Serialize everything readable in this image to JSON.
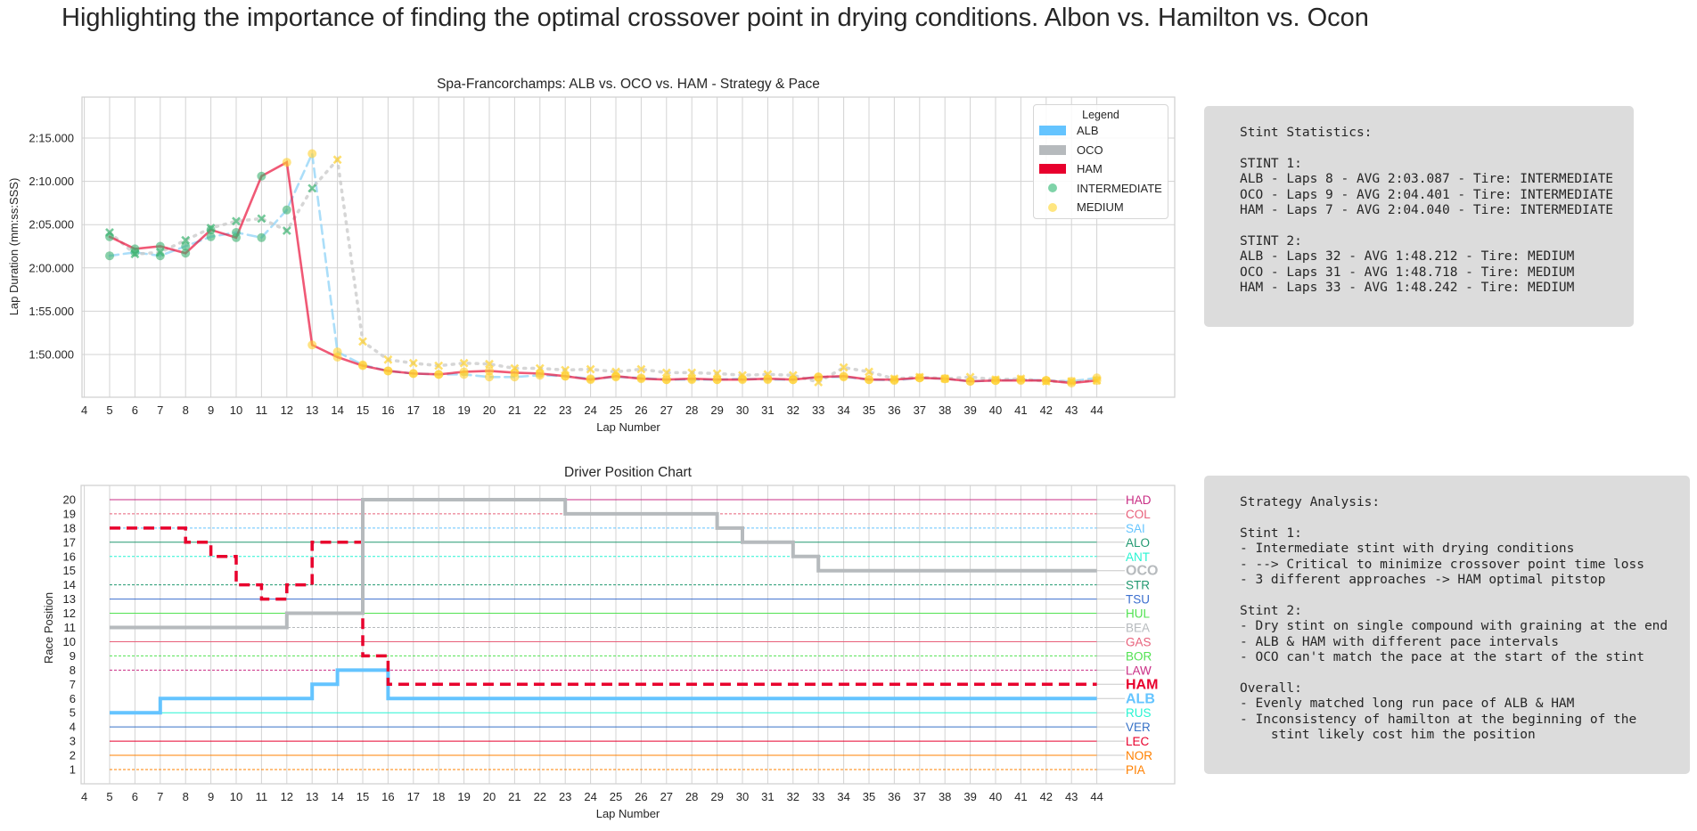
{
  "title": "Highlighting the importance of finding the optimal crossover point in drying conditions. Albon vs. Hamilton vs. Ocon",
  "chart_data": [
    {
      "type": "line",
      "title": "Spa-Francorchamps: ALB vs. OCO vs. HAM - Strategy & Pace",
      "xlabel": "Lap Number",
      "ylabel": "Lap Duration (mm:ss:SSS)",
      "xlim": [
        4,
        47
      ],
      "ylim": [
        105.1,
        139.7
      ],
      "grid": true,
      "x_ticks": [
        "4",
        "5",
        "6",
        "7",
        "8",
        "9",
        "10",
        "11",
        "12",
        "13",
        "14",
        "15",
        "16",
        "17",
        "18",
        "19",
        "20",
        "21",
        "22",
        "23",
        "24",
        "25",
        "26",
        "27",
        "28",
        "29",
        "30",
        "31",
        "32",
        "33",
        "34",
        "35",
        "36",
        "37",
        "38",
        "39",
        "40",
        "41",
        "42",
        "43",
        "44"
      ],
      "y_ticks": [
        {
          "value": 110,
          "label": "1:50.000"
        },
        {
          "value": 115,
          "label": "1:55.000"
        },
        {
          "value": 120,
          "label": "2:00.000"
        },
        {
          "value": 125,
          "label": "2:05.000"
        },
        {
          "value": 130,
          "label": "2:10.000"
        },
        {
          "value": 135,
          "label": "2:15.000"
        }
      ],
      "legend": {
        "title": "Legend",
        "placement": "top-right",
        "entries": [
          {
            "label": "ALB",
            "color": "#64c4ff",
            "kind": "patch"
          },
          {
            "label": "OCO",
            "color": "#b6babd",
            "kind": "patch"
          },
          {
            "label": "HAM",
            "color": "#e8002d",
            "kind": "patch"
          },
          {
            "label": "INTERMEDIATE",
            "color": "#43b02a",
            "kind": "marker"
          },
          {
            "label": "MEDIUM",
            "color": "#ffd12e",
            "kind": "marker"
          }
        ]
      },
      "compound_colors": {
        "INTERMEDIATE": "#3cb371",
        "MEDIUM": "#ffd12e"
      },
      "series": [
        {
          "name": "ALB",
          "color": "#8fd3f7",
          "style": "dashed",
          "marker": "circle",
          "x": [
            5,
            6,
            7,
            8,
            9,
            10,
            11,
            12,
            13,
            14,
            15,
            16,
            17,
            18,
            19,
            20,
            21,
            22,
            23,
            24,
            25,
            26,
            27,
            28,
            29,
            30,
            31,
            32,
            33,
            34,
            35,
            36,
            37,
            38,
            39,
            40,
            41,
            42,
            43,
            44
          ],
          "y": [
            121.4,
            121.8,
            121.4,
            122.5,
            123.6,
            124.1,
            123.5,
            126.7,
            133.2,
            110.3,
            108.8,
            108.1,
            107.8,
            107.7,
            107.7,
            107.4,
            107.4,
            107.6,
            107.5,
            107.2,
            107.4,
            107.3,
            107.1,
            107.1,
            107.1,
            107.2,
            107.1,
            107.1,
            107.4,
            107.4,
            107.1,
            107.0,
            107.3,
            107.2,
            106.9,
            107.0,
            107.1,
            107.0,
            106.9,
            107.3
          ],
          "compound": [
            "INTERMEDIATE",
            "INTERMEDIATE",
            "INTERMEDIATE",
            "INTERMEDIATE",
            "INTERMEDIATE",
            "INTERMEDIATE",
            "INTERMEDIATE",
            "INTERMEDIATE",
            "MEDIUM",
            "MEDIUM",
            "MEDIUM",
            "MEDIUM",
            "MEDIUM",
            "MEDIUM",
            "MEDIUM",
            "MEDIUM",
            "MEDIUM",
            "MEDIUM",
            "MEDIUM",
            "MEDIUM",
            "MEDIUM",
            "MEDIUM",
            "MEDIUM",
            "MEDIUM",
            "MEDIUM",
            "MEDIUM",
            "MEDIUM",
            "MEDIUM",
            "MEDIUM",
            "MEDIUM",
            "MEDIUM",
            "MEDIUM",
            "MEDIUM",
            "MEDIUM",
            "MEDIUM",
            "MEDIUM",
            "MEDIUM",
            "MEDIUM",
            "MEDIUM",
            "MEDIUM"
          ]
        },
        {
          "name": "OCO",
          "color": "#c8c8c8",
          "style": "dotted",
          "marker": "x",
          "x": [
            5,
            6,
            7,
            8,
            9,
            10,
            11,
            12,
            13,
            14,
            15,
            16,
            17,
            18,
            19,
            20,
            21,
            22,
            23,
            24,
            25,
            26,
            27,
            28,
            29,
            30,
            31,
            32,
            33,
            34,
            35,
            36,
            37,
            38,
            39,
            40,
            41,
            42,
            43,
            44
          ],
          "y": [
            124.1,
            121.6,
            121.8,
            123.2,
            124.6,
            125.4,
            125.7,
            124.3,
            129.2,
            132.5,
            111.5,
            109.4,
            109.0,
            108.7,
            109.0,
            108.9,
            108.4,
            108.4,
            108.2,
            108.3,
            108.0,
            108.3,
            107.9,
            107.9,
            107.8,
            107.6,
            107.7,
            107.6,
            106.8,
            108.5,
            108.0,
            107.2,
            107.4,
            107.2,
            107.4,
            107.1,
            107.2,
            106.9,
            106.9,
            107.0
          ],
          "compound": [
            "INTERMEDIATE",
            "INTERMEDIATE",
            "INTERMEDIATE",
            "INTERMEDIATE",
            "INTERMEDIATE",
            "INTERMEDIATE",
            "INTERMEDIATE",
            "INTERMEDIATE",
            "INTERMEDIATE",
            "MEDIUM",
            "MEDIUM",
            "MEDIUM",
            "MEDIUM",
            "MEDIUM",
            "MEDIUM",
            "MEDIUM",
            "MEDIUM",
            "MEDIUM",
            "MEDIUM",
            "MEDIUM",
            "MEDIUM",
            "MEDIUM",
            "MEDIUM",
            "MEDIUM",
            "MEDIUM",
            "MEDIUM",
            "MEDIUM",
            "MEDIUM",
            "MEDIUM",
            "MEDIUM",
            "MEDIUM",
            "MEDIUM",
            "MEDIUM",
            "MEDIUM",
            "MEDIUM",
            "MEDIUM",
            "MEDIUM",
            "MEDIUM",
            "MEDIUM",
            "MEDIUM"
          ]
        },
        {
          "name": "HAM",
          "color": "#e8002d",
          "style": "solid",
          "marker": "circle",
          "x": [
            5,
            6,
            7,
            8,
            9,
            10,
            11,
            12,
            13,
            14,
            15,
            16,
            17,
            18,
            19,
            20,
            21,
            22,
            23,
            24,
            25,
            26,
            27,
            28,
            29,
            30,
            31,
            32,
            33,
            34,
            35,
            36,
            37,
            38,
            39,
            40,
            41,
            42,
            43,
            44
          ],
          "y": [
            123.6,
            122.2,
            122.5,
            121.7,
            124.4,
            123.5,
            130.6,
            132.2,
            111.1,
            109.7,
            108.7,
            108.1,
            107.8,
            107.7,
            108.0,
            108.1,
            107.9,
            107.8,
            107.5,
            107.1,
            107.5,
            107.2,
            107.1,
            107.2,
            107.1,
            107.1,
            107.2,
            107.1,
            107.4,
            107.5,
            107.1,
            107.1,
            107.3,
            107.2,
            106.9,
            107.0,
            107.0,
            107.0,
            106.7,
            107.0
          ],
          "compound": [
            "INTERMEDIATE",
            "INTERMEDIATE",
            "INTERMEDIATE",
            "INTERMEDIATE",
            "INTERMEDIATE",
            "INTERMEDIATE",
            "INTERMEDIATE",
            "MEDIUM",
            "MEDIUM",
            "MEDIUM",
            "MEDIUM",
            "MEDIUM",
            "MEDIUM",
            "MEDIUM",
            "MEDIUM",
            "MEDIUM",
            "MEDIUM",
            "MEDIUM",
            "MEDIUM",
            "MEDIUM",
            "MEDIUM",
            "MEDIUM",
            "MEDIUM",
            "MEDIUM",
            "MEDIUM",
            "MEDIUM",
            "MEDIUM",
            "MEDIUM",
            "MEDIUM",
            "MEDIUM",
            "MEDIUM",
            "MEDIUM",
            "MEDIUM",
            "MEDIUM",
            "MEDIUM",
            "MEDIUM",
            "MEDIUM",
            "MEDIUM",
            "MEDIUM",
            "MEDIUM"
          ]
        }
      ]
    },
    {
      "type": "line",
      "title": "Driver Position Chart",
      "xlabel": "Lap Number",
      "ylabel": "Race Position",
      "xlim": [
        4,
        47
      ],
      "ylim": [
        0,
        21
      ],
      "x_ticks": [
        "4",
        "5",
        "6",
        "7",
        "8",
        "9",
        "10",
        "11",
        "12",
        "13",
        "14",
        "15",
        "16",
        "17",
        "18",
        "19",
        "20",
        "21",
        "22",
        "23",
        "24",
        "25",
        "26",
        "27",
        "28",
        "29",
        "30",
        "31",
        "32",
        "33",
        "34",
        "35",
        "36",
        "37",
        "38",
        "39",
        "40",
        "41",
        "42",
        "43",
        "44"
      ],
      "y_ticks": [
        "1",
        "2",
        "3",
        "4",
        "5",
        "6",
        "7",
        "8",
        "9",
        "10",
        "11",
        "12",
        "13",
        "14",
        "15",
        "16",
        "17",
        "18",
        "19",
        "20"
      ],
      "highlighted": [
        {
          "name": "ALB",
          "color": "#64c4ff",
          "style": "solid",
          "x": [
            5,
            6,
            7,
            8,
            9,
            10,
            11,
            12,
            13,
            14,
            15,
            16,
            17,
            44
          ],
          "y": [
            5,
            5,
            6,
            6,
            6,
            6,
            6,
            6,
            7,
            8,
            8,
            6,
            6,
            6
          ]
        },
        {
          "name": "HAM",
          "color": "#e8002d",
          "style": "dashed",
          "x": [
            5,
            6,
            7,
            8,
            9,
            10,
            11,
            12,
            13,
            14,
            15,
            16,
            17,
            44
          ],
          "y": [
            18,
            18,
            18,
            17,
            16,
            14,
            13,
            14,
            17,
            17,
            9,
            7,
            7,
            7
          ]
        },
        {
          "name": "OCO",
          "color": "#b6babd",
          "style": "solid",
          "x": [
            5,
            11,
            12,
            14,
            15,
            22,
            23,
            28,
            29,
            30,
            31,
            32,
            33,
            44
          ],
          "y": [
            11,
            11,
            12,
            12,
            20,
            20,
            19,
            19,
            18,
            17,
            17,
            16,
            15,
            15
          ]
        }
      ],
      "drivers": [
        {
          "name": "HAD",
          "final": 20,
          "color": "#c92d84",
          "style": "solid"
        },
        {
          "name": "COL",
          "final": 19,
          "color": "#e8607a",
          "style": "dashed"
        },
        {
          "name": "SAI",
          "final": 18,
          "color": "#64c4ff",
          "style": "dashed"
        },
        {
          "name": "ALO",
          "final": 17,
          "color": "#229971",
          "style": "solid"
        },
        {
          "name": "ANT",
          "final": 16,
          "color": "#27f4d2",
          "style": "dashed"
        },
        {
          "name": "OCO",
          "final": 15,
          "color": "#b6babd",
          "style": "solid",
          "bold": true
        },
        {
          "name": "STR",
          "final": 14,
          "color": "#229971",
          "style": "dashed"
        },
        {
          "name": "TSU",
          "final": 13,
          "color": "#3c6fcf",
          "style": "solid"
        },
        {
          "name": "HUL",
          "final": 12,
          "color": "#52e252",
          "style": "solid"
        },
        {
          "name": "BEA",
          "final": 11,
          "color": "#b6babd",
          "style": "dashed"
        },
        {
          "name": "GAS",
          "final": 10,
          "color": "#e8607a",
          "style": "solid"
        },
        {
          "name": "BOR",
          "final": 9,
          "color": "#52e252",
          "style": "dashed"
        },
        {
          "name": "LAW",
          "final": 8,
          "color": "#c92d84",
          "style": "dashed"
        },
        {
          "name": "HAM",
          "final": 7,
          "color": "#e8002d",
          "style": "dashed",
          "bold": true
        },
        {
          "name": "ALB",
          "final": 6,
          "color": "#64c4ff",
          "style": "solid",
          "bold": true
        },
        {
          "name": "RUS",
          "final": 5,
          "color": "#27f4d2",
          "style": "solid"
        },
        {
          "name": "VER",
          "final": 4,
          "color": "#3671c6",
          "style": "solid"
        },
        {
          "name": "LEC",
          "final": 3,
          "color": "#e8002d",
          "style": "solid"
        },
        {
          "name": "NOR",
          "final": 2,
          "color": "#ff8000",
          "style": "solid"
        },
        {
          "name": "PIA",
          "final": 1,
          "color": "#ff8000",
          "style": "dashed"
        }
      ]
    }
  ],
  "stats_box": {
    "heading": "Stint Statistics:",
    "lines": [
      "",
      "STINT 1:",
      "ALB - Laps 8 - AVG 2:03.087 - Tire: INTERMEDIATE",
      "OCO - Laps 9 - AVG 2:04.401 - Tire: INTERMEDIATE",
      "HAM - Laps 7 - AVG 2:04.040 - Tire: INTERMEDIATE",
      "",
      "STINT 2:",
      "ALB - Laps 32 - AVG 1:48.212 - Tire: MEDIUM",
      "OCO - Laps 31 - AVG 1:48.718 - Tire: MEDIUM",
      "HAM - Laps 33 - AVG 1:48.242 - Tire: MEDIUM"
    ]
  },
  "analysis_box": {
    "heading": "Strategy Analysis:",
    "lines": [
      "",
      "Stint 1:",
      "- Intermediate stint with drying conditions",
      "- --> Critical to minimize crossover point time loss",
      "- 3 different approaches -> HAM optimal pitstop",
      "",
      "Stint 2:",
      "- Dry stint on single compound with graining at the end",
      "- ALB & HAM with different pace intervals",
      "- OCO can't match the pace at the start of the stint",
      "",
      "Overall:",
      "- Evenly matched long run pace of ALB & HAM",
      "- Inconsistency of hamilton at the beginning of the",
      "    stint likely cost him the position"
    ]
  }
}
